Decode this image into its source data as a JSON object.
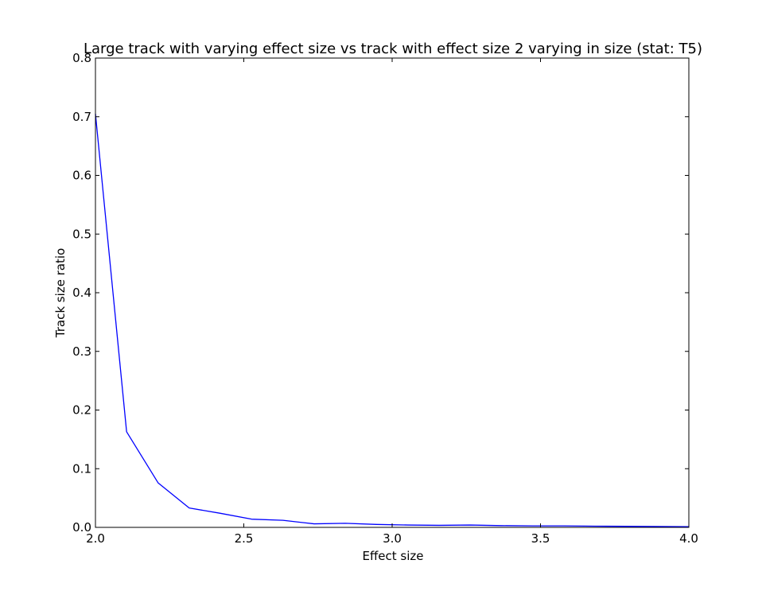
{
  "chart_data": {
    "type": "line",
    "title": "Large track with varying effect size vs track with effect size 2 varying in size (stat: T5)",
    "xlabel": "Effect size",
    "ylabel": "Track size ratio",
    "xlim": [
      2.0,
      4.0
    ],
    "ylim": [
      0.0,
      0.8
    ],
    "xticks": [
      2.0,
      2.5,
      3.0,
      3.5,
      4.0
    ],
    "xtick_labels": [
      "2.0",
      "2.5",
      "3.0",
      "3.5",
      "4.0"
    ],
    "yticks": [
      0.0,
      0.1,
      0.2,
      0.3,
      0.4,
      0.5,
      0.6,
      0.7,
      0.8
    ],
    "ytick_labels": [
      "0.0",
      "0.1",
      "0.2",
      "0.3",
      "0.4",
      "0.5",
      "0.6",
      "0.7",
      "0.8"
    ],
    "grid": false,
    "series": [
      {
        "color": "#0000ff",
        "x": [
          2.0,
          2.105,
          2.211,
          2.316,
          2.421,
          2.526,
          2.632,
          2.737,
          2.842,
          2.947,
          3.053,
          3.158,
          3.263,
          3.368,
          3.474,
          3.579,
          3.684,
          3.789,
          3.895,
          4.0
        ],
        "y": [
          0.705,
          0.163,
          0.076,
          0.033,
          0.024,
          0.014,
          0.012,
          0.006,
          0.007,
          0.005,
          0.004,
          0.0035,
          0.004,
          0.003,
          0.0025,
          0.0025,
          0.002,
          0.0018,
          0.0015,
          0.0012
        ]
      }
    ]
  }
}
